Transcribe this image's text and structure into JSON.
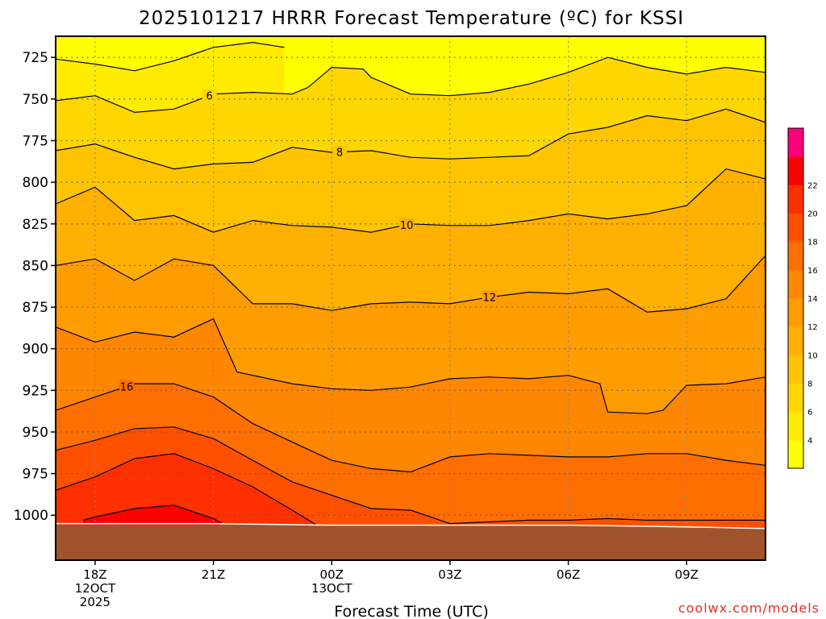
{
  "chart_data": {
    "type": "contour",
    "title": "2025101217 HRRR Forecast Temperature (ºC) for KSSI",
    "xlabel": "Forecast Time (UTC)",
    "ylabel": "",
    "y_axis": {
      "direction": "pressure, decreasing upward",
      "ticks": [
        "725",
        "750",
        "775",
        "800",
        "825",
        "850",
        "875",
        "900",
        "925",
        "950",
        "975",
        "1000"
      ],
      "tick_values": [
        725,
        750,
        775,
        800,
        825,
        850,
        875,
        900,
        925,
        950,
        975,
        1000
      ]
    },
    "x_axis": {
      "range_hours": [
        -1,
        17
      ],
      "ticks": [
        {
          "hour": 0,
          "label": "18Z\n12OCT\n2025"
        },
        {
          "hour": 3,
          "label": "21Z"
        },
        {
          "hour": 6,
          "label": "00Z\n13OCT"
        },
        {
          "hour": 9,
          "label": "03Z"
        },
        {
          "hour": 12,
          "label": "06Z"
        },
        {
          "hour": 15,
          "label": "09Z"
        }
      ]
    },
    "grid": "dotted, on major ticks",
    "colorbar": {
      "position": "right",
      "levels": [
        2,
        4,
        6,
        8,
        10,
        12,
        14,
        16,
        18,
        20,
        22,
        24
      ],
      "tick_labels": [
        "4",
        "6",
        "8",
        "10",
        "12",
        "14",
        "16",
        "18",
        "20",
        "22"
      ],
      "colors": [
        "#ffff00",
        "#ffeb00",
        "#ffd700",
        "#ffc400",
        "#ffb000",
        "#ff9c00",
        "#ff8600",
        "#ff6e00",
        "#ff5000",
        "#ff3000",
        "#ff0000",
        "#ff007a"
      ]
    },
    "isotherms": [
      {
        "level": 4,
        "label": "",
        "points": [
          [
            -1,
            726
          ],
          [
            0,
            729
          ],
          [
            1,
            733
          ],
          [
            2,
            727
          ],
          [
            3,
            719
          ],
          [
            4,
            716
          ],
          [
            4.8,
            719
          ]
        ]
      },
      {
        "level": 6,
        "label": "6",
        "points": [
          [
            -1,
            751
          ],
          [
            0,
            748
          ],
          [
            1,
            758
          ],
          [
            2,
            756
          ],
          [
            3,
            747
          ],
          [
            4,
            746
          ],
          [
            5,
            747
          ],
          [
            5.4,
            743
          ],
          [
            6,
            731
          ],
          [
            6.8,
            732
          ],
          [
            7,
            737
          ],
          [
            8,
            747
          ],
          [
            9,
            748
          ],
          [
            10,
            746
          ],
          [
            11,
            741
          ],
          [
            12,
            734
          ],
          [
            13,
            725
          ],
          [
            14,
            731
          ],
          [
            15,
            735
          ],
          [
            16,
            731
          ],
          [
            17,
            734
          ]
        ]
      },
      {
        "level": 8,
        "label": "8",
        "points": [
          [
            -1,
            781
          ],
          [
            0,
            777
          ],
          [
            1,
            785
          ],
          [
            2,
            792
          ],
          [
            3,
            789
          ],
          [
            4,
            788
          ],
          [
            5,
            779
          ],
          [
            6,
            782
          ],
          [
            7,
            781
          ],
          [
            8,
            785
          ],
          [
            9,
            786
          ],
          [
            10,
            785
          ],
          [
            11,
            784
          ],
          [
            12,
            771
          ],
          [
            13,
            767
          ],
          [
            14,
            760
          ],
          [
            15,
            763
          ],
          [
            16,
            756
          ],
          [
            17,
            764
          ]
        ]
      },
      {
        "level": 10,
        "label": "10",
        "points": [
          [
            -1,
            813
          ],
          [
            0,
            803
          ],
          [
            1,
            823
          ],
          [
            2,
            820
          ],
          [
            3,
            830
          ],
          [
            4,
            823
          ],
          [
            5,
            826
          ],
          [
            6,
            827
          ],
          [
            7,
            830
          ],
          [
            8,
            825
          ],
          [
            9,
            826
          ],
          [
            10,
            826
          ],
          [
            11,
            823
          ],
          [
            12,
            819
          ],
          [
            13,
            822
          ],
          [
            14,
            819
          ],
          [
            15,
            814
          ],
          [
            16,
            792
          ],
          [
            17,
            798
          ]
        ]
      },
      {
        "level": 12,
        "label": "12",
        "points": [
          [
            -1,
            850
          ],
          [
            0,
            846
          ],
          [
            1,
            859
          ],
          [
            2,
            846
          ],
          [
            3,
            850
          ],
          [
            4,
            873
          ],
          [
            5,
            873
          ],
          [
            6,
            877
          ],
          [
            7,
            873
          ],
          [
            8,
            872
          ],
          [
            9,
            873
          ],
          [
            10,
            869
          ],
          [
            11,
            866
          ],
          [
            12,
            867
          ],
          [
            13,
            864
          ],
          [
            14,
            878
          ],
          [
            15,
            876
          ],
          [
            16,
            870
          ],
          [
            17,
            844
          ]
        ]
      },
      {
        "level": 14,
        "label": "",
        "points": [
          [
            -1,
            887
          ],
          [
            0,
            896
          ],
          [
            1,
            890
          ],
          [
            2,
            893
          ],
          [
            3,
            882
          ],
          [
            3.6,
            914
          ],
          [
            5,
            921
          ],
          [
            6,
            924
          ],
          [
            7,
            925
          ],
          [
            8,
            923
          ],
          [
            9,
            918
          ],
          [
            10,
            917
          ],
          [
            11,
            918
          ],
          [
            12,
            916
          ],
          [
            12.8,
            921
          ],
          [
            13,
            938
          ],
          [
            14,
            939
          ],
          [
            14.4,
            937
          ],
          [
            15,
            922
          ],
          [
            16,
            921
          ],
          [
            17,
            917
          ]
        ]
      },
      {
        "level": 16,
        "label": "16",
        "points": [
          [
            -1,
            937
          ],
          [
            0,
            929
          ],
          [
            1,
            921
          ],
          [
            2,
            921
          ],
          [
            3,
            929
          ],
          [
            4,
            945
          ],
          [
            5,
            956
          ],
          [
            6,
            967
          ],
          [
            7,
            972
          ],
          [
            8,
            974
          ],
          [
            9,
            965
          ],
          [
            10,
            963
          ],
          [
            11,
            964
          ],
          [
            12,
            965
          ],
          [
            13,
            965
          ],
          [
            14,
            963
          ],
          [
            15,
            963
          ],
          [
            16,
            967
          ],
          [
            17,
            970
          ]
        ]
      },
      {
        "level": 18,
        "label": "",
        "points": [
          [
            -1,
            961
          ],
          [
            0,
            955
          ],
          [
            1,
            948
          ],
          [
            2,
            947
          ],
          [
            3,
            954
          ],
          [
            4,
            967
          ],
          [
            5,
            980
          ],
          [
            6,
            988
          ],
          [
            7,
            996
          ],
          [
            8,
            997
          ],
          [
            9,
            1005
          ],
          [
            10,
            1004
          ],
          [
            11,
            1003
          ],
          [
            12,
            1003
          ],
          [
            13,
            1002
          ],
          [
            14,
            1003
          ],
          [
            15,
            1003
          ],
          [
            16,
            1003
          ],
          [
            17,
            1003
          ]
        ]
      },
      {
        "level": 20,
        "label": "",
        "points": [
          [
            -1,
            985
          ],
          [
            0,
            977
          ],
          [
            1,
            966
          ],
          [
            2,
            963
          ],
          [
            3,
            972
          ],
          [
            4,
            983
          ],
          [
            5,
            997
          ],
          [
            5.9,
            1010
          ]
        ]
      },
      {
        "level": 22,
        "label": "",
        "points": [
          [
            -0.3,
            1003
          ],
          [
            0,
            1001
          ],
          [
            1,
            996
          ],
          [
            2,
            994
          ],
          [
            3,
            1002
          ],
          [
            3.6,
            1010
          ]
        ]
      }
    ],
    "ground": {
      "color": "#a0522d",
      "surface_pressure": [
        [
          -1,
          1005
        ],
        [
          3,
          1005
        ],
        [
          6,
          1006
        ],
        [
          9,
          1006
        ],
        [
          12,
          1006
        ],
        [
          15,
          1007
        ],
        [
          17,
          1008
        ]
      ]
    },
    "watermark": "coolwx.com/models"
  }
}
